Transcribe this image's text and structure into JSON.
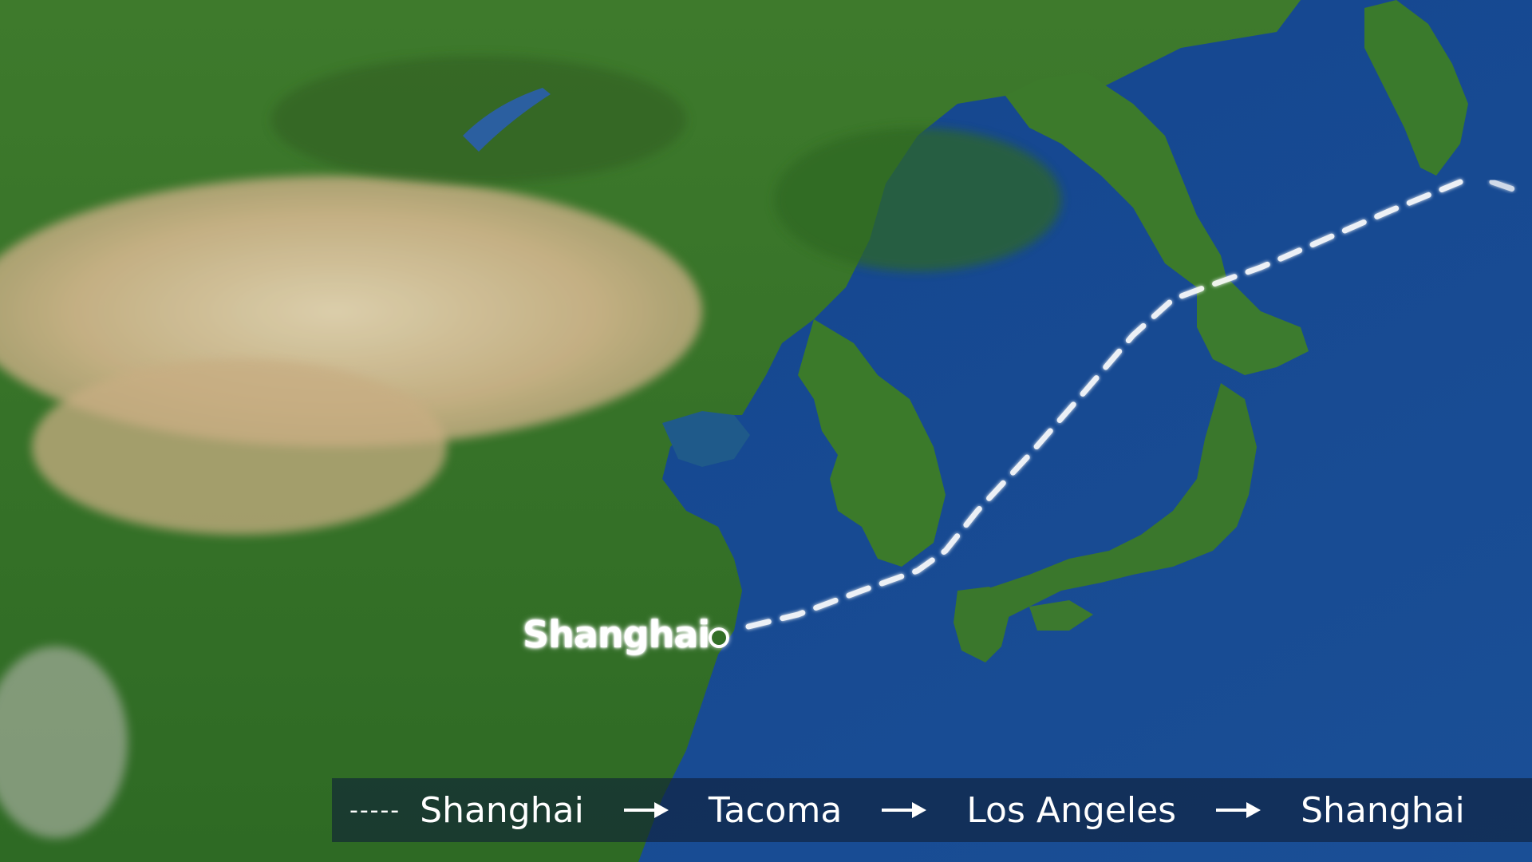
{
  "map": {
    "marker_city": "Shanghai"
  },
  "legend": {
    "line_symbol": "-----",
    "stops": [
      "Shanghai",
      "Tacoma",
      "Los Angeles",
      "Shanghai"
    ],
    "arrow_icon": "right-arrow-icon"
  },
  "colors": {
    "ocean": "#1e4d8f",
    "route": "#ffffff"
  }
}
